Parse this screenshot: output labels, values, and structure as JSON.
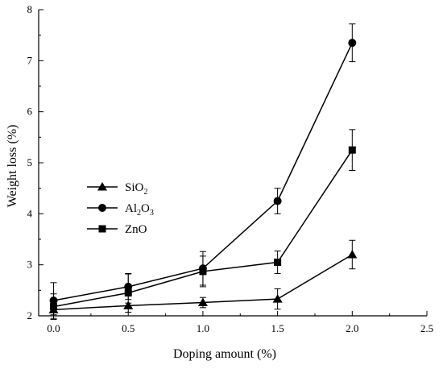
{
  "chart_data": {
    "type": "line",
    "xlabel": "Doping amount (%)",
    "ylabel": "Weight loss (%)",
    "xlim": [
      -0.1,
      2.5
    ],
    "ylim": [
      2,
      8
    ],
    "xticks": [
      "0.0",
      "0.5",
      "1.0",
      "1.5",
      "2.0",
      "2.5"
    ],
    "yticks": [
      "2",
      "3",
      "4",
      "5",
      "6",
      "7",
      "8"
    ],
    "grid": false,
    "legend_placement": "middle-left",
    "series": [
      {
        "name": "SiO2",
        "legend_base": "SiO",
        "legend_sub": "2",
        "marker": "triangle",
        "x": [
          0.0,
          0.5,
          1.0,
          1.5,
          2.0
        ],
        "y": [
          2.12,
          2.2,
          2.26,
          2.33,
          3.2
        ],
        "error": [
          0.1,
          0.05,
          0.1,
          0.2,
          0.28
        ]
      },
      {
        "name": "Al2O3",
        "legend_base": "Al",
        "legend_sub": "2",
        "legend_base2": "O",
        "legend_sub2": "3",
        "marker": "circle",
        "x": [
          0.0,
          0.5,
          1.0,
          1.5,
          2.0
        ],
        "y": [
          2.3,
          2.57,
          2.93,
          4.25,
          7.35
        ],
        "error": [
          0.35,
          0.25,
          0.33,
          0.25,
          0.37
        ]
      },
      {
        "name": "ZnO",
        "legend_base": "ZnO",
        "marker": "square",
        "x": [
          0.0,
          0.5,
          1.0,
          1.5,
          2.0
        ],
        "y": [
          2.18,
          2.45,
          2.87,
          3.05,
          5.25
        ],
        "error": [
          0.25,
          0.38,
          0.3,
          0.22,
          0.4
        ]
      }
    ]
  }
}
